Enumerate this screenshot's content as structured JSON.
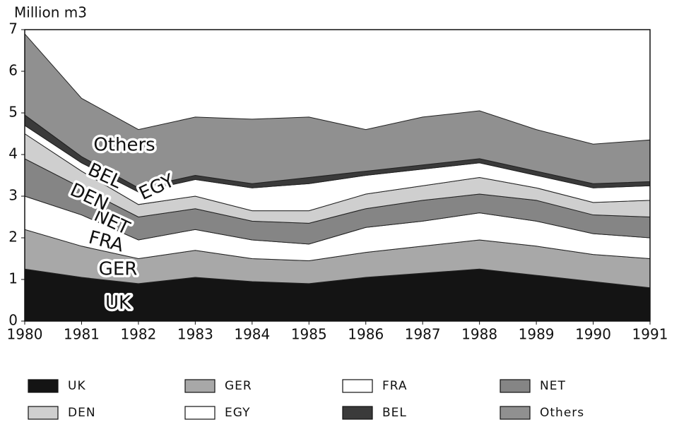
{
  "chart_data": {
    "type": "area",
    "y_label": "Million m3",
    "x": [
      1980,
      1981,
      1982,
      1983,
      1984,
      1985,
      1986,
      1987,
      1988,
      1989,
      1990,
      1991
    ],
    "xlim": [
      1980,
      1991
    ],
    "xticks": [
      1980,
      1981,
      1982,
      1983,
      1984,
      1985,
      1986,
      1987,
      1988,
      1989,
      1990,
      1991
    ],
    "ylim": [
      0,
      7
    ],
    "yticks": [
      0,
      1,
      2,
      3,
      4,
      5,
      6,
      7
    ],
    "series": [
      {
        "name": "UK",
        "color": "#141414",
        "values": [
          1.25,
          1.05,
          0.9,
          1.05,
          0.95,
          0.9,
          1.05,
          1.15,
          1.25,
          1.1,
          0.95,
          0.8
        ]
      },
      {
        "name": "GER",
        "color": "#a8a8a8",
        "values": [
          0.95,
          0.75,
          0.6,
          0.65,
          0.55,
          0.55,
          0.6,
          0.65,
          0.7,
          0.7,
          0.65,
          0.7
        ]
      },
      {
        "name": "FRA",
        "color": "#ffffff",
        "values": [
          0.8,
          0.75,
          0.45,
          0.5,
          0.45,
          0.4,
          0.6,
          0.6,
          0.65,
          0.6,
          0.5,
          0.5
        ]
      },
      {
        "name": "NET",
        "color": "#858585",
        "values": [
          0.9,
          0.65,
          0.55,
          0.5,
          0.45,
          0.5,
          0.45,
          0.5,
          0.45,
          0.5,
          0.45,
          0.5
        ]
      },
      {
        "name": "DEN",
        "color": "#cfcfcf",
        "values": [
          0.6,
          0.4,
          0.3,
          0.3,
          0.25,
          0.3,
          0.35,
          0.35,
          0.4,
          0.3,
          0.3,
          0.4
        ]
      },
      {
        "name": "EGY",
        "color": "#ffffff",
        "values": [
          0.2,
          0.2,
          0.3,
          0.4,
          0.55,
          0.65,
          0.45,
          0.4,
          0.35,
          0.3,
          0.35,
          0.35
        ]
      },
      {
        "name": "BEL",
        "color": "#3a3a3a",
        "values": [
          0.25,
          0.15,
          0.1,
          0.1,
          0.1,
          0.15,
          0.1,
          0.1,
          0.1,
          0.1,
          0.1,
          0.1
        ]
      },
      {
        "name": "Others",
        "color": "#909090",
        "values": [
          1.95,
          1.4,
          1.4,
          1.4,
          1.55,
          1.45,
          1.0,
          1.15,
          1.15,
          1.0,
          0.95,
          1.0
        ]
      }
    ]
  }
}
